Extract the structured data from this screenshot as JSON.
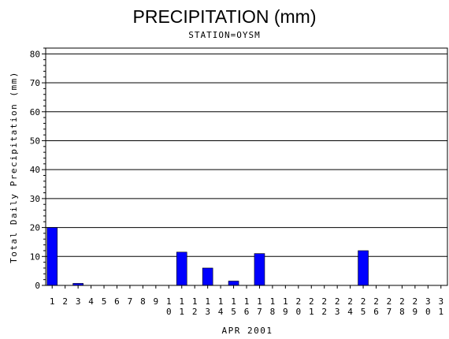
{
  "chart_data": {
    "type": "bar",
    "title": "PRECIPITATION (mm)",
    "subtitle": "STATION=OYSM",
    "xlabel": "APR 2001",
    "ylabel": "Total Daily Precipitation (mm)",
    "ylim": [
      0,
      82
    ],
    "yticks": [
      0,
      10,
      20,
      30,
      40,
      50,
      60,
      70,
      80
    ],
    "grid": true,
    "bar_color": "#0000ff",
    "categories": [
      "1",
      "2",
      "3",
      "4",
      "5",
      "6",
      "7",
      "8",
      "9",
      "10",
      "11",
      "12",
      "13",
      "14",
      "15",
      "16",
      "17",
      "18",
      "19",
      "20",
      "21",
      "22",
      "23",
      "24",
      "25",
      "26",
      "27",
      "28",
      "29",
      "30",
      "31"
    ],
    "values": [
      20,
      0,
      0.7,
      0,
      0,
      0,
      0,
      0,
      0,
      0,
      11.5,
      0,
      6,
      0,
      1.5,
      0,
      11,
      0,
      0,
      0,
      0,
      0,
      0,
      0,
      12,
      0,
      0,
      0,
      0,
      0,
      0
    ]
  }
}
